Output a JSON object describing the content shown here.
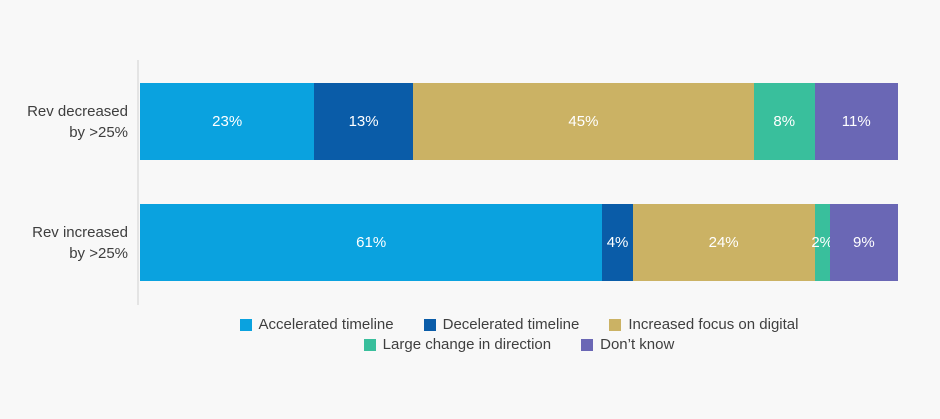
{
  "background_color": "#F8F8F8",
  "label_text_color": "#3E3E3E",
  "bar_value_text_color": "#FFFFFF",
  "axis_line_color": "#E4E4E4",
  "chart_data": {
    "type": "bar",
    "variant": "horizontal-stacked-100-percent",
    "title": "",
    "xlabel": "",
    "ylabel": "",
    "xlim": [
      0,
      100
    ],
    "grid": "off",
    "value_suffix": "%",
    "legend_position": "bottom-center",
    "categories": [
      {
        "lines": [
          "Rev decreased",
          "by >25%"
        ],
        "label": "Rev decreased by >25%"
      },
      {
        "lines": [
          "Rev increased",
          "by >25%"
        ],
        "label": "Rev increased by >25%"
      }
    ],
    "series": [
      {
        "name": "Accelerated timeline",
        "color": "#0AA2DF",
        "values": [
          23,
          61
        ]
      },
      {
        "name": "Decelerated timeline",
        "color": "#0A5CA8",
        "values": [
          13,
          4
        ]
      },
      {
        "name": "Increased focus on digital",
        "color": "#CBB264",
        "values": [
          45,
          24
        ]
      },
      {
        "name": "Large change in direction",
        "color": "#39BF9C",
        "values": [
          8,
          2
        ]
      },
      {
        "name": "Don’t know",
        "color": "#6A67B5",
        "values": [
          11,
          9
        ]
      }
    ],
    "bar_value_labels": [
      [
        "23%",
        "13%",
        "45%",
        "8%",
        "11%"
      ],
      [
        "61%",
        "4%",
        "24%",
        "2%",
        "9%"
      ]
    ],
    "legend_rows": [
      [
        0,
        1,
        2
      ],
      [
        3,
        4
      ]
    ]
  }
}
